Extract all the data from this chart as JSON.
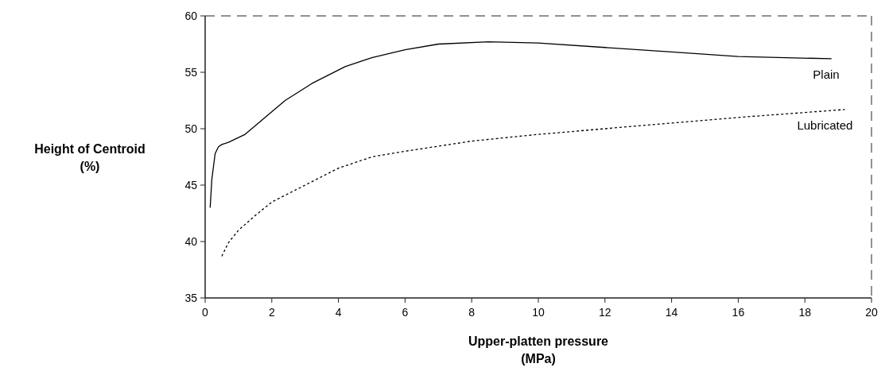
{
  "chart_data": {
    "type": "line",
    "xlabel": "Upper-platten pressure\n(MPa)",
    "ylabel": "Height of Centroid\n(%)",
    "xlim": [
      0,
      20
    ],
    "ylim": [
      35,
      60
    ],
    "xticks": [
      0,
      2,
      4,
      6,
      8,
      10,
      12,
      14,
      16,
      18,
      20
    ],
    "yticks": [
      35,
      40,
      45,
      50,
      55,
      60
    ],
    "grid": false,
    "marker": "none",
    "series": [
      {
        "name": "Plain",
        "color": "#000000",
        "line_style": "solid",
        "x": [
          0.15,
          0.2,
          0.3,
          0.4,
          0.5,
          0.7,
          1.2,
          1.8,
          2.4,
          3.2,
          4.2,
          5,
          6,
          7,
          8.5,
          10,
          12,
          14,
          16,
          18.8
        ],
        "values": [
          43,
          45.5,
          47.8,
          48.4,
          48.6,
          48.8,
          49.5,
          51,
          52.5,
          54,
          55.5,
          56.3,
          57,
          57.5,
          57.7,
          57.6,
          57.2,
          56.8,
          56.4,
          56.2
        ]
      },
      {
        "name": "Lubricated",
        "color": "#000000",
        "line_style": "dotted",
        "x": [
          0.5,
          0.7,
          1,
          1.5,
          2,
          3,
          4,
          5,
          6,
          8,
          10,
          12,
          14,
          16,
          19.2
        ],
        "values": [
          38.7,
          39.9,
          41,
          42.3,
          43.5,
          45,
          46.5,
          47.5,
          48,
          48.9,
          49.5,
          50,
          50.5,
          51,
          51.7
        ]
      }
    ]
  }
}
